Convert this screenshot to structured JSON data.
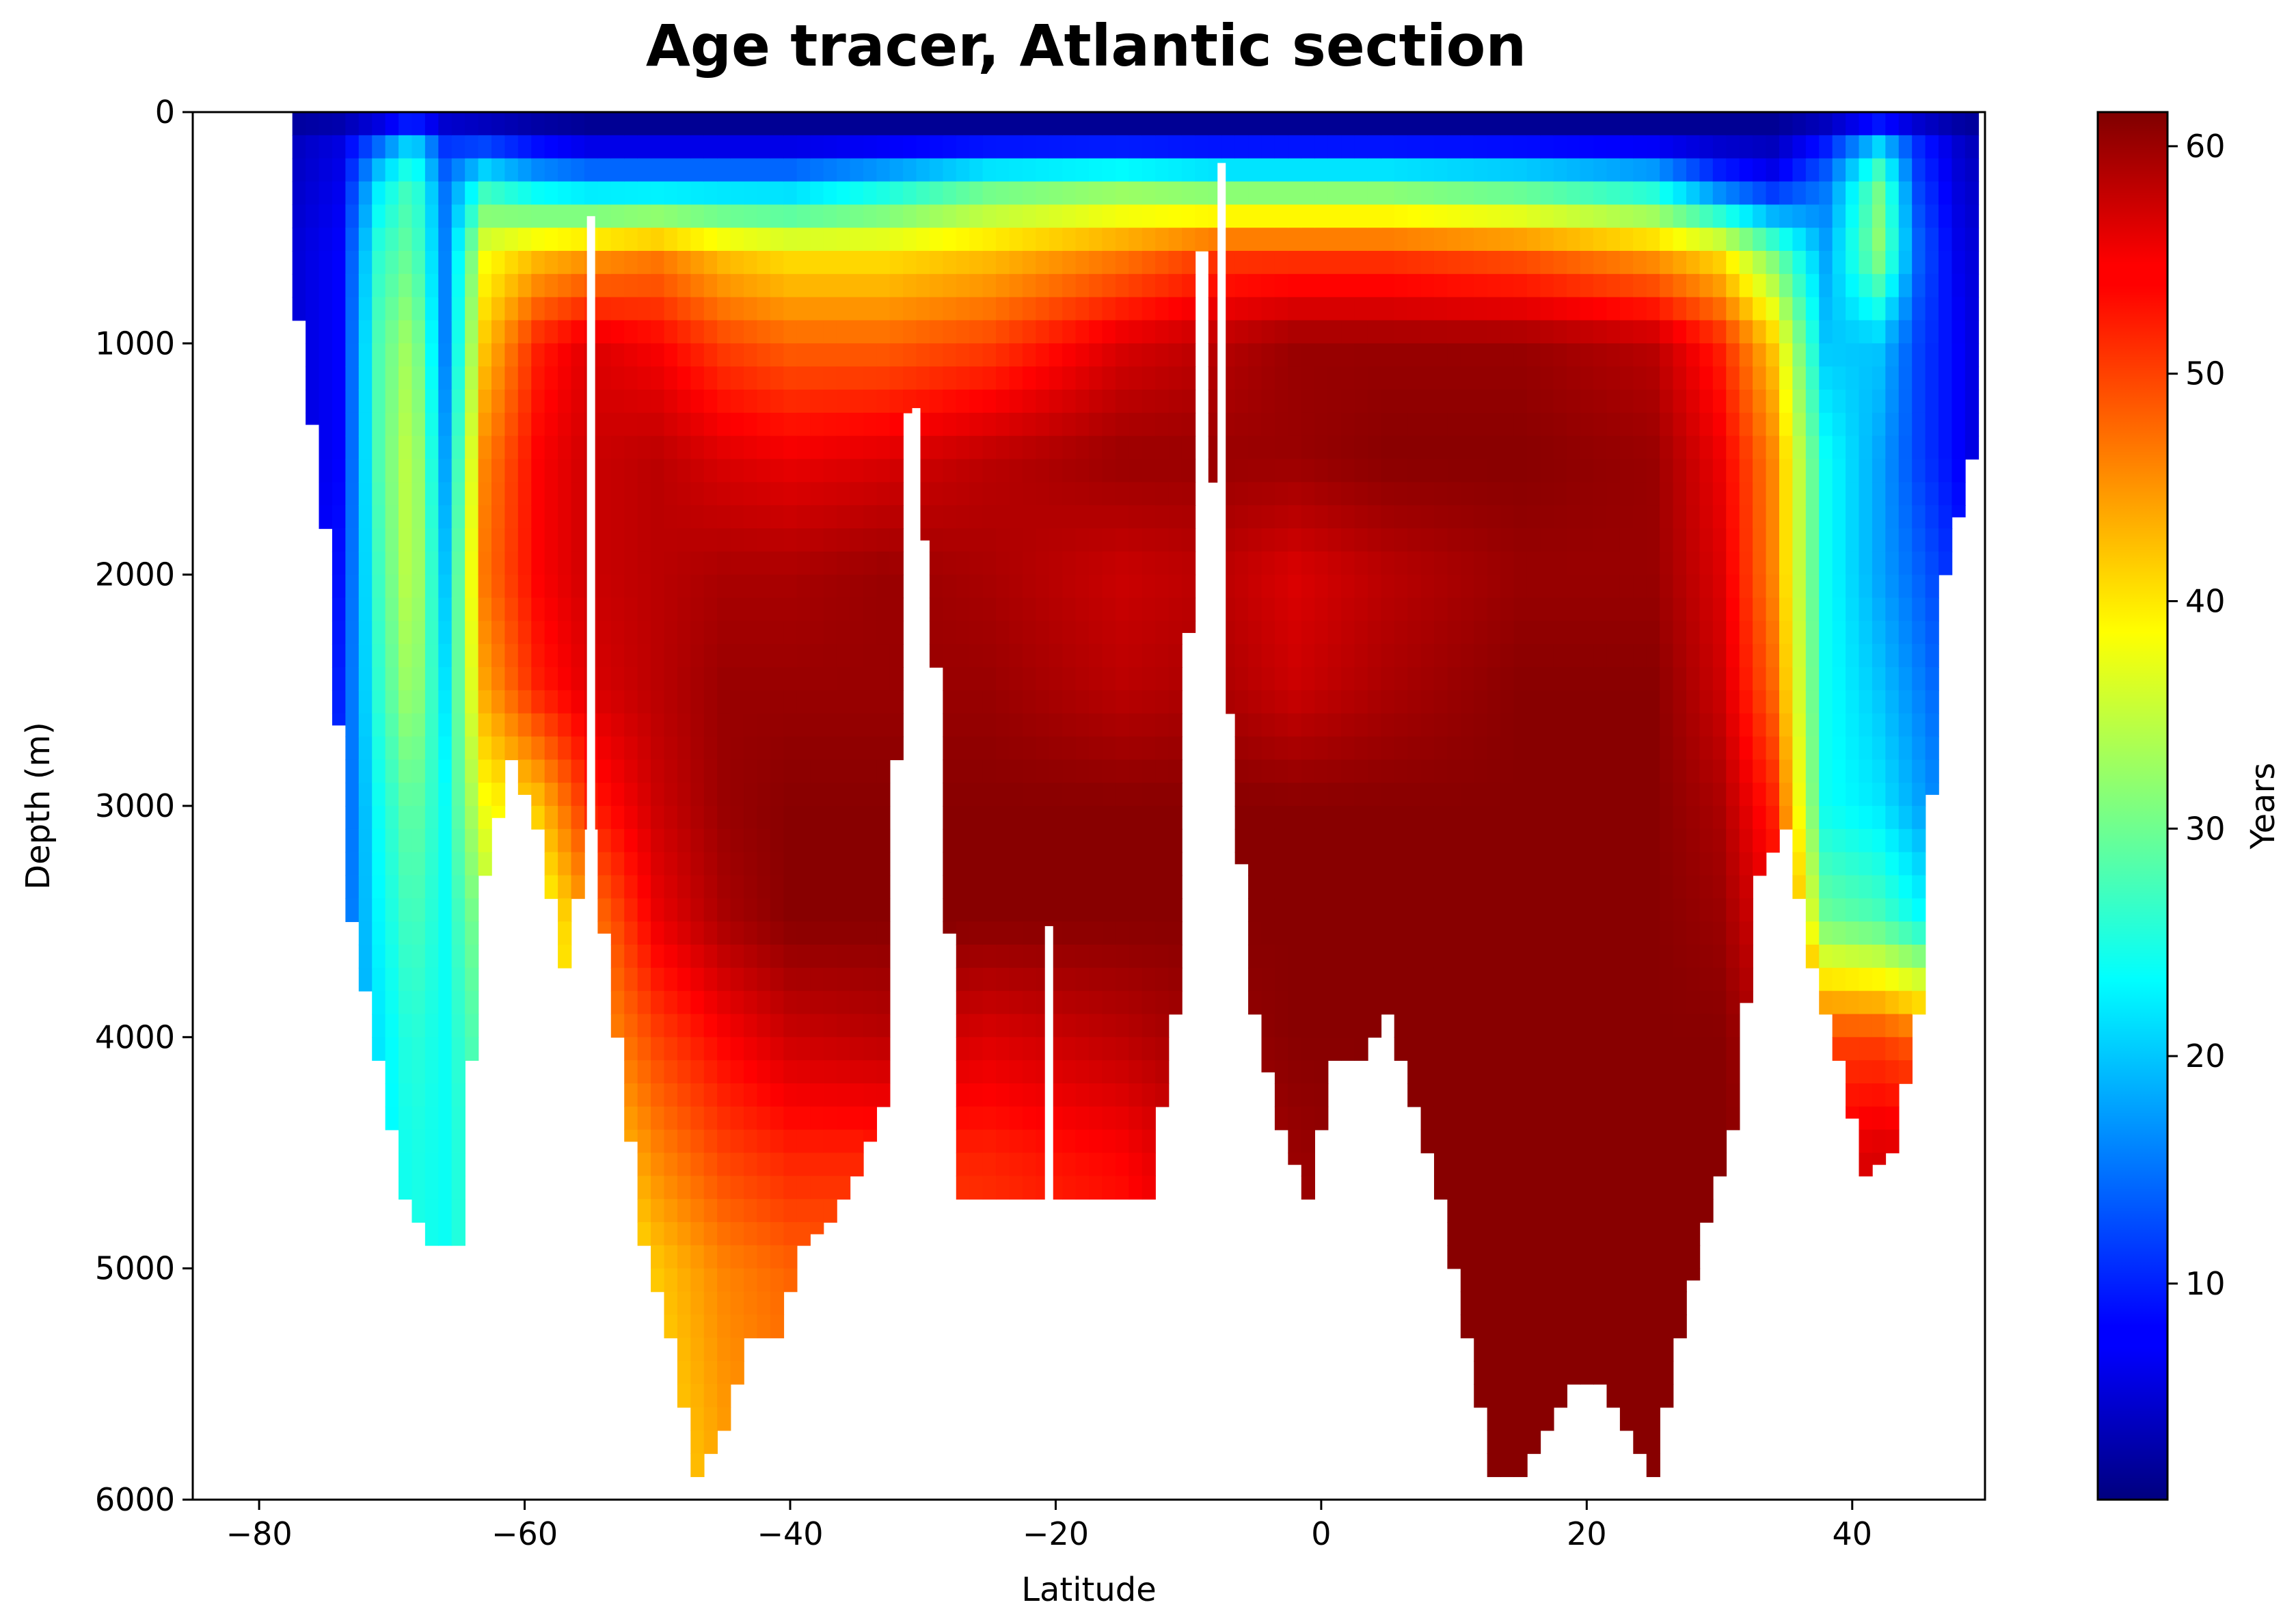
{
  "chart_data": {
    "type": "heatmap",
    "title": "Age tracer, Atlantic section",
    "xlabel": "Latitude",
    "ylabel": "Depth (m)",
    "colorbar_label": "Years",
    "colormap": "jet",
    "xlim": [
      -85,
      50
    ],
    "ylim": [
      6000,
      0
    ],
    "clim": [
      0.5,
      61.5
    ],
    "x_ticks": [
      -80,
      -60,
      -40,
      -20,
      0,
      20,
      40
    ],
    "x_tick_labels": [
      "−80",
      "−60",
      "−40",
      "−20",
      "0",
      "20",
      "40"
    ],
    "y_ticks": [
      0,
      1000,
      2000,
      3000,
      4000,
      5000,
      6000
    ],
    "y_tick_labels": [
      "0",
      "1000",
      "2000",
      "3000",
      "4000",
      "5000",
      "6000"
    ],
    "colorbar_ticks": [
      10,
      20,
      30,
      40,
      50,
      60
    ],
    "colorbar_tick_labels": [
      "10",
      "20",
      "30",
      "40",
      "50",
      "60"
    ],
    "grid": false,
    "bathymetry": {
      "latitude": [
        -77,
        -75,
        -73,
        -71,
        -69,
        -67,
        -65,
        -63,
        -61,
        -59,
        -57,
        -55,
        -53,
        -51,
        -49,
        -47,
        -45,
        -43,
        -41,
        -39,
        -37,
        -35,
        -33,
        -31,
        -29,
        -27,
        -25,
        -23,
        -21,
        -19,
        -17,
        -15,
        -13,
        -11,
        -9,
        -7,
        -5,
        -3,
        -1,
        1,
        3,
        5,
        7,
        9,
        11,
        13,
        15,
        17,
        19,
        21,
        23,
        25,
        27,
        29,
        31,
        33,
        35,
        37,
        39,
        41,
        43,
        45,
        47,
        49
      ],
      "bottom_depth_m": [
        900,
        1800,
        3500,
        4100,
        4700,
        4900,
        4900,
        3300,
        2800,
        3100,
        3700,
        3100,
        4000,
        4900,
        5300,
        5900,
        5700,
        5300,
        5300,
        4900,
        4800,
        4600,
        4300,
        1300,
        2400,
        4700,
        4700,
        4700,
        4700,
        4700,
        4700,
        4700,
        4700,
        3900,
        600,
        2600,
        3900,
        4400,
        4700,
        4100,
        4100,
        3900,
        4300,
        4700,
        5300,
        5900,
        5900,
        5700,
        5500,
        5500,
        5700,
        5900,
        5300,
        4800,
        4400,
        3300,
        3100,
        3700,
        4100,
        4600,
        4500,
        3900,
        2000,
        1500
      ]
    },
    "gaps": [
      {
        "latitude": -55,
        "top_depth_m": 450,
        "bottom_depth_m": 6000
      },
      {
        "latitude": -30.5,
        "top_depth_m": 1280,
        "bottom_depth_m": 6000
      },
      {
        "latitude": -20.5,
        "top_depth_m": 3520,
        "bottom_depth_m": 6000
      },
      {
        "latitude": -7.5,
        "top_depth_m": 220,
        "bottom_depth_m": 6000
      }
    ],
    "age_anchors": {
      "latitude": [
        -80,
        -74,
        -71,
        -68.5,
        -66,
        -63,
        -59,
        -55,
        -50,
        -45,
        -40,
        -33,
        -25,
        -15,
        -8,
        -2,
        5,
        15,
        25,
        30,
        34,
        38,
        42,
        45,
        48,
        50
      ],
      "depth_m": [
        0,
        100,
        300,
        600,
        1000,
        1500,
        2000,
        2500,
        3000,
        3500,
        4000,
        4500,
        5000,
        6000
      ],
      "years": [
        [
          0.5,
          0.5,
          0.5,
          0.5,
          0.5,
          0.5,
          0.5,
          0.5,
          0.5,
          0.5,
          0.5,
          0.5,
          0.5,
          0.5,
          0.5,
          0.5,
          0.5,
          0.5,
          0.5,
          0.5,
          0.5,
          0.5,
          0.5,
          0.5,
          0.5,
          0.5
        ],
        [
          3,
          6,
          12,
          20,
          10,
          8,
          5,
          3,
          3,
          3,
          3,
          3,
          3,
          3,
          3,
          3,
          3,
          3,
          3,
          3,
          3,
          8,
          18,
          10,
          5,
          3
        ],
        [
          3,
          7,
          22,
          28,
          15,
          25,
          20,
          18,
          18,
          18,
          18,
          22,
          28,
          30,
          28,
          28,
          28,
          26,
          22,
          12,
          8,
          15,
          30,
          12,
          6,
          4
        ],
        [
          4,
          8,
          26,
          30,
          16,
          38,
          42,
          44,
          46,
          42,
          40,
          40,
          42,
          46,
          50,
          50,
          50,
          48,
          44,
          40,
          30,
          18,
          32,
          14,
          7,
          5
        ],
        [
          4,
          8,
          28,
          34,
          16,
          42,
          52,
          56,
          54,
          50,
          48,
          48,
          50,
          56,
          58,
          60,
          60,
          60,
          58,
          52,
          42,
          20,
          20,
          12,
          8,
          5
        ],
        [
          4,
          8,
          28,
          36,
          18,
          46,
          54,
          57,
          58,
          56,
          55,
          56,
          58,
          60,
          60,
          60,
          61,
          61,
          60,
          55,
          46,
          24,
          18,
          12,
          8,
          5
        ],
        [
          4,
          9,
          27,
          36,
          20,
          47,
          54,
          57,
          58,
          59,
          59,
          60,
          59,
          57,
          58,
          56,
          58,
          60,
          60,
          56,
          46,
          24,
          18,
          14,
          10,
          6
        ],
        [
          4,
          10,
          26,
          34,
          22,
          44,
          52,
          56,
          58,
          60,
          60,
          60,
          60,
          58,
          59,
          57,
          59,
          61,
          61,
          57,
          48,
          24,
          20,
          16,
          12,
          7
        ],
        [
          4,
          11,
          24,
          30,
          24,
          38,
          42,
          52,
          57,
          60,
          61,
          61,
          61,
          61,
          61,
          61,
          61,
          61,
          61,
          59,
          52,
          24,
          22,
          18,
          14,
          8
        ],
        [
          4,
          12,
          23,
          28,
          24,
          33,
          36,
          46,
          55,
          59,
          61,
          61,
          61,
          61,
          61,
          61,
          61,
          61,
          61,
          60,
          55,
          30,
          28,
          24,
          18,
          10
        ],
        [
          4,
          13,
          22,
          26,
          24,
          30,
          34,
          44,
          50,
          54,
          57,
          58,
          56,
          58,
          60,
          61,
          61,
          61,
          61,
          61,
          58,
          50,
          50,
          48,
          30,
          12
        ],
        [
          4,
          14,
          22,
          25,
          24,
          28,
          32,
          40,
          46,
          50,
          52,
          52,
          52,
          54,
          58,
          60,
          61,
          61,
          61,
          61,
          60,
          55,
          56,
          56,
          40,
          14
        ],
        [
          4,
          14,
          22,
          25,
          24,
          28,
          32,
          36,
          42,
          46,
          48,
          48,
          50,
          52,
          56,
          59,
          61,
          61,
          61,
          61,
          61,
          58,
          58,
          58,
          45,
          16
        ],
        [
          4,
          14,
          22,
          25,
          24,
          28,
          32,
          36,
          40,
          44,
          46,
          46,
          48,
          50,
          54,
          58,
          61,
          61,
          61,
          61,
          61,
          60,
          60,
          60,
          50,
          18
        ]
      ]
    }
  }
}
